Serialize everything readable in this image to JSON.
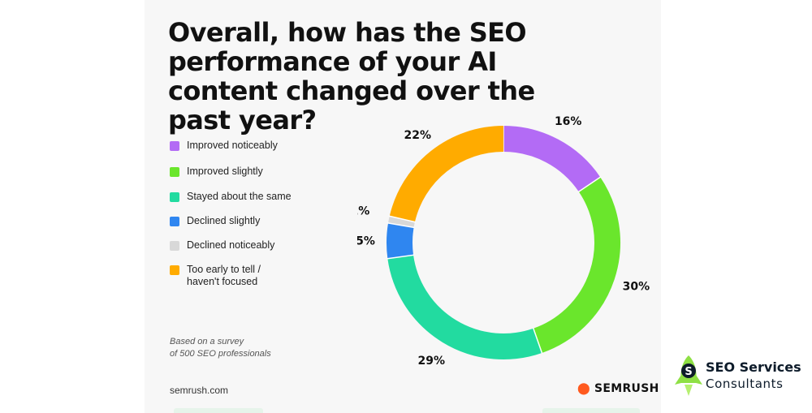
{
  "title": "Overall, how has the SEO performance of your AI content changed over the past year?",
  "footnote": {
    "line1": "Based on a survey",
    "line2": "of 500 SEO professionals"
  },
  "source_site": "semrush.com",
  "brand": {
    "name": "SEMRUSH",
    "color": "#ff5a1f"
  },
  "watermark": {
    "line1": "SEO Services",
    "line2": "Consultants",
    "icon": "rocket-s-icon",
    "accent": "#8ee044"
  },
  "chart_data": {
    "type": "pie",
    "style": "donut",
    "start": "top",
    "direction": "clockwise",
    "legend_position": "left",
    "series": [
      {
        "name": "Improved noticeably",
        "value": 16,
        "label": "16%",
        "color": "#b36bf5"
      },
      {
        "name": "Improved slightly",
        "value": 30,
        "label": "30%",
        "color": "#6ae62c"
      },
      {
        "name": "Stayed about the same",
        "value": 29,
        "label": "29%",
        "color": "#22dba0"
      },
      {
        "name": "Declined slightly",
        "value": 5,
        "label": "5%",
        "color": "#2f86f0"
      },
      {
        "name": "Declined noticeably",
        "value": 1,
        "label": "1%",
        "color": "#d8d8d8"
      },
      {
        "name": "Too early to tell / haven't focused",
        "name_line1": "Too early to tell /",
        "name_line2": "haven't focused",
        "value": 22,
        "label": "22%",
        "color": "#ffab00"
      }
    ]
  }
}
